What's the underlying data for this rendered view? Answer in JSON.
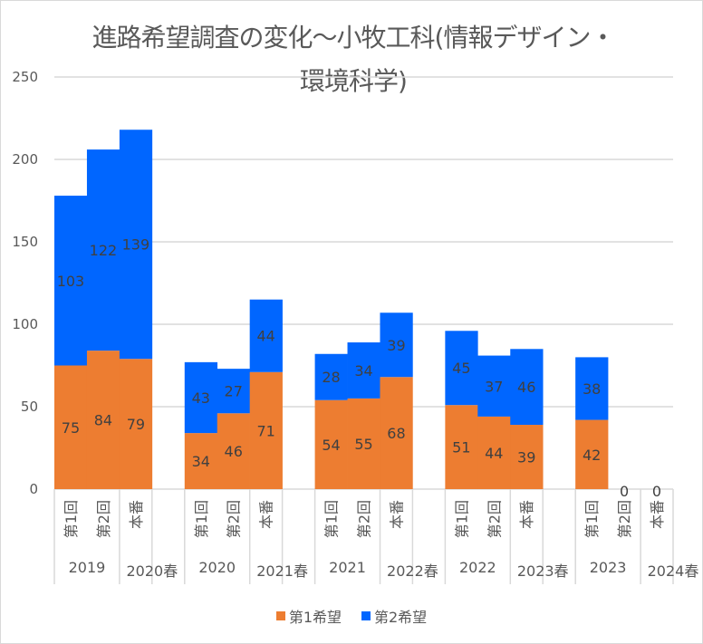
{
  "chart_data": {
    "type": "bar",
    "stacked": true,
    "title": "進路希望調査の変化～小牧工科(情報デザイン・環境科学)",
    "xlabel": "",
    "ylabel": "",
    "ylim": [
      0,
      250
    ],
    "yticks": [
      0,
      50,
      100,
      150,
      200,
      250
    ],
    "grid": true,
    "legend_position": "bottom",
    "groups": [
      {
        "labels": [
          "2019",
          "2020春"
        ],
        "categories": [
          "第1回",
          "第2回",
          "本番"
        ]
      },
      {
        "labels": [
          "2020",
          "2021春"
        ],
        "categories": [
          "第1回",
          "第2回",
          "本番"
        ]
      },
      {
        "labels": [
          "2021",
          "2022春"
        ],
        "categories": [
          "第1回",
          "第2回",
          "本番"
        ]
      },
      {
        "labels": [
          "2022",
          "2023春"
        ],
        "categories": [
          "第1回",
          "第2回",
          "本番"
        ]
      },
      {
        "labels": [
          "2023",
          "2024春"
        ],
        "categories": [
          "第1回",
          "第2回",
          "本番"
        ]
      }
    ],
    "series": [
      {
        "name": "第1希望",
        "color": "#ED7D31",
        "values": [
          [
            75,
            84,
            79
          ],
          [
            34,
            46,
            71
          ],
          [
            54,
            55,
            68
          ],
          [
            51,
            44,
            39
          ],
          [
            42,
            0,
            0
          ]
        ]
      },
      {
        "name": "第2希望",
        "color": "#0066FF",
        "values": [
          [
            103,
            122,
            139
          ],
          [
            43,
            27,
            44
          ],
          [
            28,
            34,
            39
          ],
          [
            45,
            37,
            46
          ],
          [
            38,
            null,
            null
          ]
        ]
      }
    ]
  }
}
